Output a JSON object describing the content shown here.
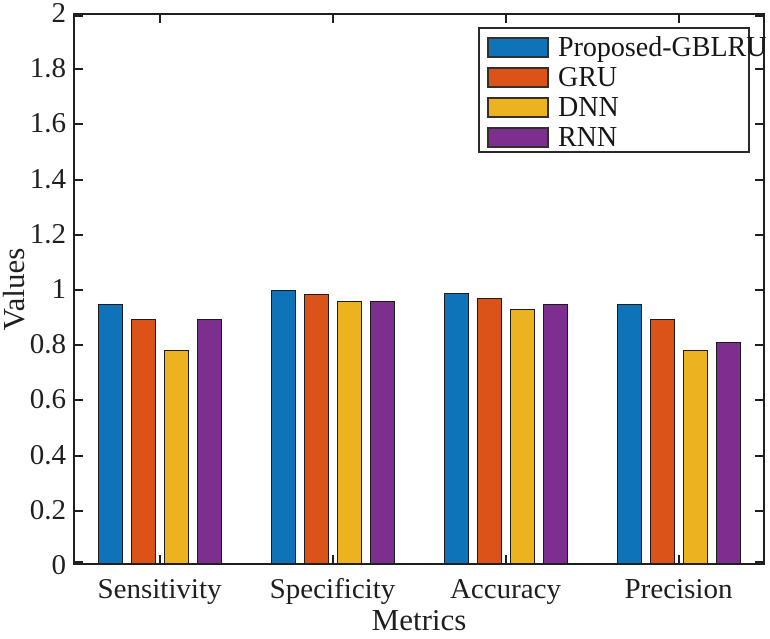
{
  "figure": {
    "background": "#ffffff",
    "axis_color": "#1f1f1f",
    "text_color": "#1f1f1f"
  },
  "chart_data": {
    "type": "bar",
    "title": "",
    "xlabel": "Metrics",
    "ylabel": "Values",
    "categories": [
      "Sensitivity",
      "Specificity",
      "Accuracy",
      "Precision"
    ],
    "series": [
      {
        "name": "Proposed-GBLRU",
        "color": "#0E73B9",
        "values": [
          0.94,
          0.99,
          0.98,
          0.94
        ]
      },
      {
        "name": "GRU",
        "color": "#DB5319",
        "values": [
          0.885,
          0.975,
          0.96,
          0.885
        ]
      },
      {
        "name": "DNN",
        "color": "#EDB21F",
        "values": [
          0.77,
          0.95,
          0.92,
          0.77
        ]
      },
      {
        "name": "RNN",
        "color": "#7D2F90",
        "values": [
          0.885,
          0.95,
          0.94,
          0.8
        ]
      }
    ],
    "ylim": [
      0,
      2
    ],
    "yticks": [
      0,
      0.2,
      0.4,
      0.6,
      0.8,
      1,
      1.2,
      1.4,
      1.6,
      1.8,
      2
    ],
    "bar_edge_color": "#1c1c1c",
    "grid": false,
    "legend_position": "top-right",
    "box": true,
    "tick_direction": "in"
  }
}
